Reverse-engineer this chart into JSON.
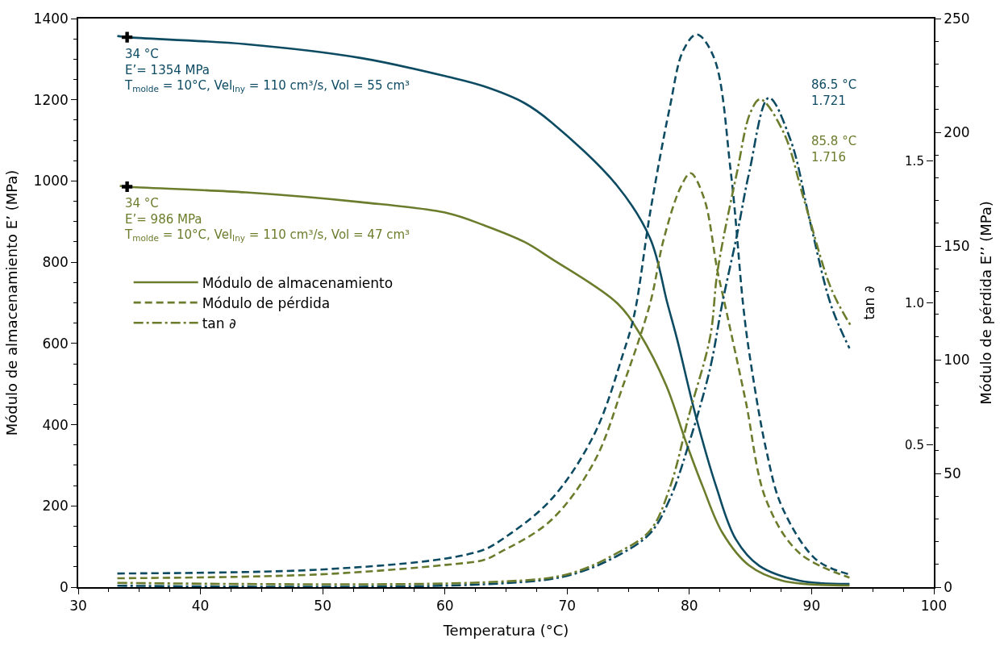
{
  "chart_data": {
    "type": "line",
    "xlabel": "Temperatura (°C)",
    "ylabel": "Módulo de almacenamiento E’ (MPa)",
    "y2label": "Módulo de pérdida E’’ (MPa)",
    "y3label": "tan ∂",
    "xlim": [
      30,
      100
    ],
    "xticks": [
      30,
      40,
      50,
      60,
      70,
      80,
      90,
      100
    ],
    "ylim": [
      0,
      1400
    ],
    "yticks": [
      0,
      200,
      400,
      600,
      800,
      1000,
      1200,
      1400
    ],
    "y2lim": [
      0,
      250
    ],
    "y2ticks": [
      0,
      50,
      100,
      150,
      200,
      250
    ],
    "y3lim": [
      0,
      2.0
    ],
    "y3ticks": [
      {
        "value": 0.5,
        "label": "0.5"
      },
      {
        "value": 1,
        "label": "1.0"
      },
      {
        "value": 1.5,
        "label": "1.5"
      }
    ],
    "legend": "left",
    "marker": "none",
    "series": [
      {
        "color": "#0d4b63",
        "line_style": "solid",
        "x": [
          33.2,
          34,
          43.7,
          53.1,
          60.2,
          63.2,
          66.5,
          68.7,
          74.1,
          76.8,
          78.2,
          79.0,
          80.5,
          82.2,
          83.8,
          85.7,
          89.0,
          93.1
        ],
        "values": [
          1357,
          1354,
          1337,
          1303,
          1257,
          1233,
          1192,
          1145,
          988,
          858,
          699,
          610,
          424,
          247,
          118,
          53,
          16,
          8
        ]
      },
      {
        "name": "Módulo de almacenamiento",
        "color": "#6b7d2c",
        "line_style": "solid",
        "x": [
          33.4,
          34,
          43.7,
          53.1,
          60.2,
          63.2,
          66.5,
          68.7,
          74.1,
          75.9,
          78.1,
          79.7,
          81.1,
          82.7,
          84.9,
          87.6,
          93.1
        ],
        "values": [
          988,
          986,
          972,
          948,
          921,
          891,
          850,
          809,
          699,
          626,
          497,
          359,
          247,
          134,
          53,
          16,
          4
        ]
      },
      {
        "color": "#0d4b63",
        "line_style": "dashed",
        "axis": "y2",
        "x": [
          33.2,
          49.7,
          60.1,
          63.2,
          64.4,
          68.6,
          72.2,
          74.6,
          75.5,
          76.8,
          78.4,
          79.5,
          80.6,
          82.0,
          83.4,
          84.4,
          84.9,
          86.3,
          87.6,
          90.4,
          93.1
        ],
        "values": [
          6,
          7.7,
          12.6,
          16.5,
          20,
          38,
          67,
          103,
          120,
          165,
          211,
          236,
          243,
          233,
          182,
          124,
          103,
          60,
          35,
          12,
          5.6
        ]
      },
      {
        "name": "Módulo de pérdida",
        "color": "#6b7d2c",
        "line_style": "dashed",
        "axis": "y2",
        "x": [
          33.2,
          49.7,
          60.1,
          63.2,
          64.4,
          68.6,
          72.2,
          74.6,
          76.8,
          77.9,
          79.3,
          80.1,
          81.2,
          82.3,
          83.0,
          84.6,
          86.3,
          89.0,
          93.1
        ],
        "values": [
          3.9,
          5.6,
          9.8,
          12,
          15,
          29,
          55,
          89,
          125,
          153,
          176,
          182,
          171,
          139,
          122,
          82,
          38,
          15,
          4.2
        ]
      },
      {
        "color": "#0d4b63",
        "line_style": "dashdot",
        "axis": "y3",
        "x": [
          33.2,
          63.2,
          70.0,
          74.1,
          76.8,
          78.4,
          80.0,
          81.7,
          82.7,
          83.9,
          84.9,
          86.5,
          88.3,
          89.9,
          91.6,
          93.1
        ],
        "values": [
          0.005,
          0.01,
          0.04,
          0.11,
          0.19,
          0.31,
          0.51,
          0.77,
          1.0,
          1.24,
          1.46,
          1.721,
          1.57,
          1.28,
          0.99,
          0.84
        ]
      },
      {
        "name": "tan ∂",
        "color": "#6b7d2c",
        "line_style": "dashdot",
        "axis": "y3",
        "x": [
          33.2,
          63.2,
          70.0,
          74.1,
          76.8,
          78.4,
          80.0,
          81.7,
          82.3,
          83.9,
          85.0,
          85.8,
          87.7,
          89.4,
          91.6,
          93.2
        ],
        "values": [
          0.015,
          0.017,
          0.045,
          0.12,
          0.2,
          0.35,
          0.61,
          0.88,
          1.11,
          1.46,
          1.67,
          1.716,
          1.6,
          1.36,
          1.05,
          0.92
        ]
      },
      {
        "type": "scatter",
        "marker": "cross",
        "color": "#000000",
        "x": [
          34,
          34
        ],
        "values": [
          1354,
          986
        ]
      }
    ],
    "annotations": [
      {
        "text": "34 °C\nE’= 1354 MPa\nT$_{molde}$ = 10°C, Vel$_{Iny}$ = 110 cm³/s, Vol = 55 cm³",
        "x": 34,
        "y": 1354
      },
      {
        "text": "34 °C\nE’= 986 MPa\nT$_{molde}$ = 10°C, Vel$_{Iny}$ = 110 cm³/s, Vol = 47 cm³",
        "x": 34,
        "y": 986
      },
      "86.5 °C\n1.721",
      "85.8 °C\n1.716"
    ]
  }
}
